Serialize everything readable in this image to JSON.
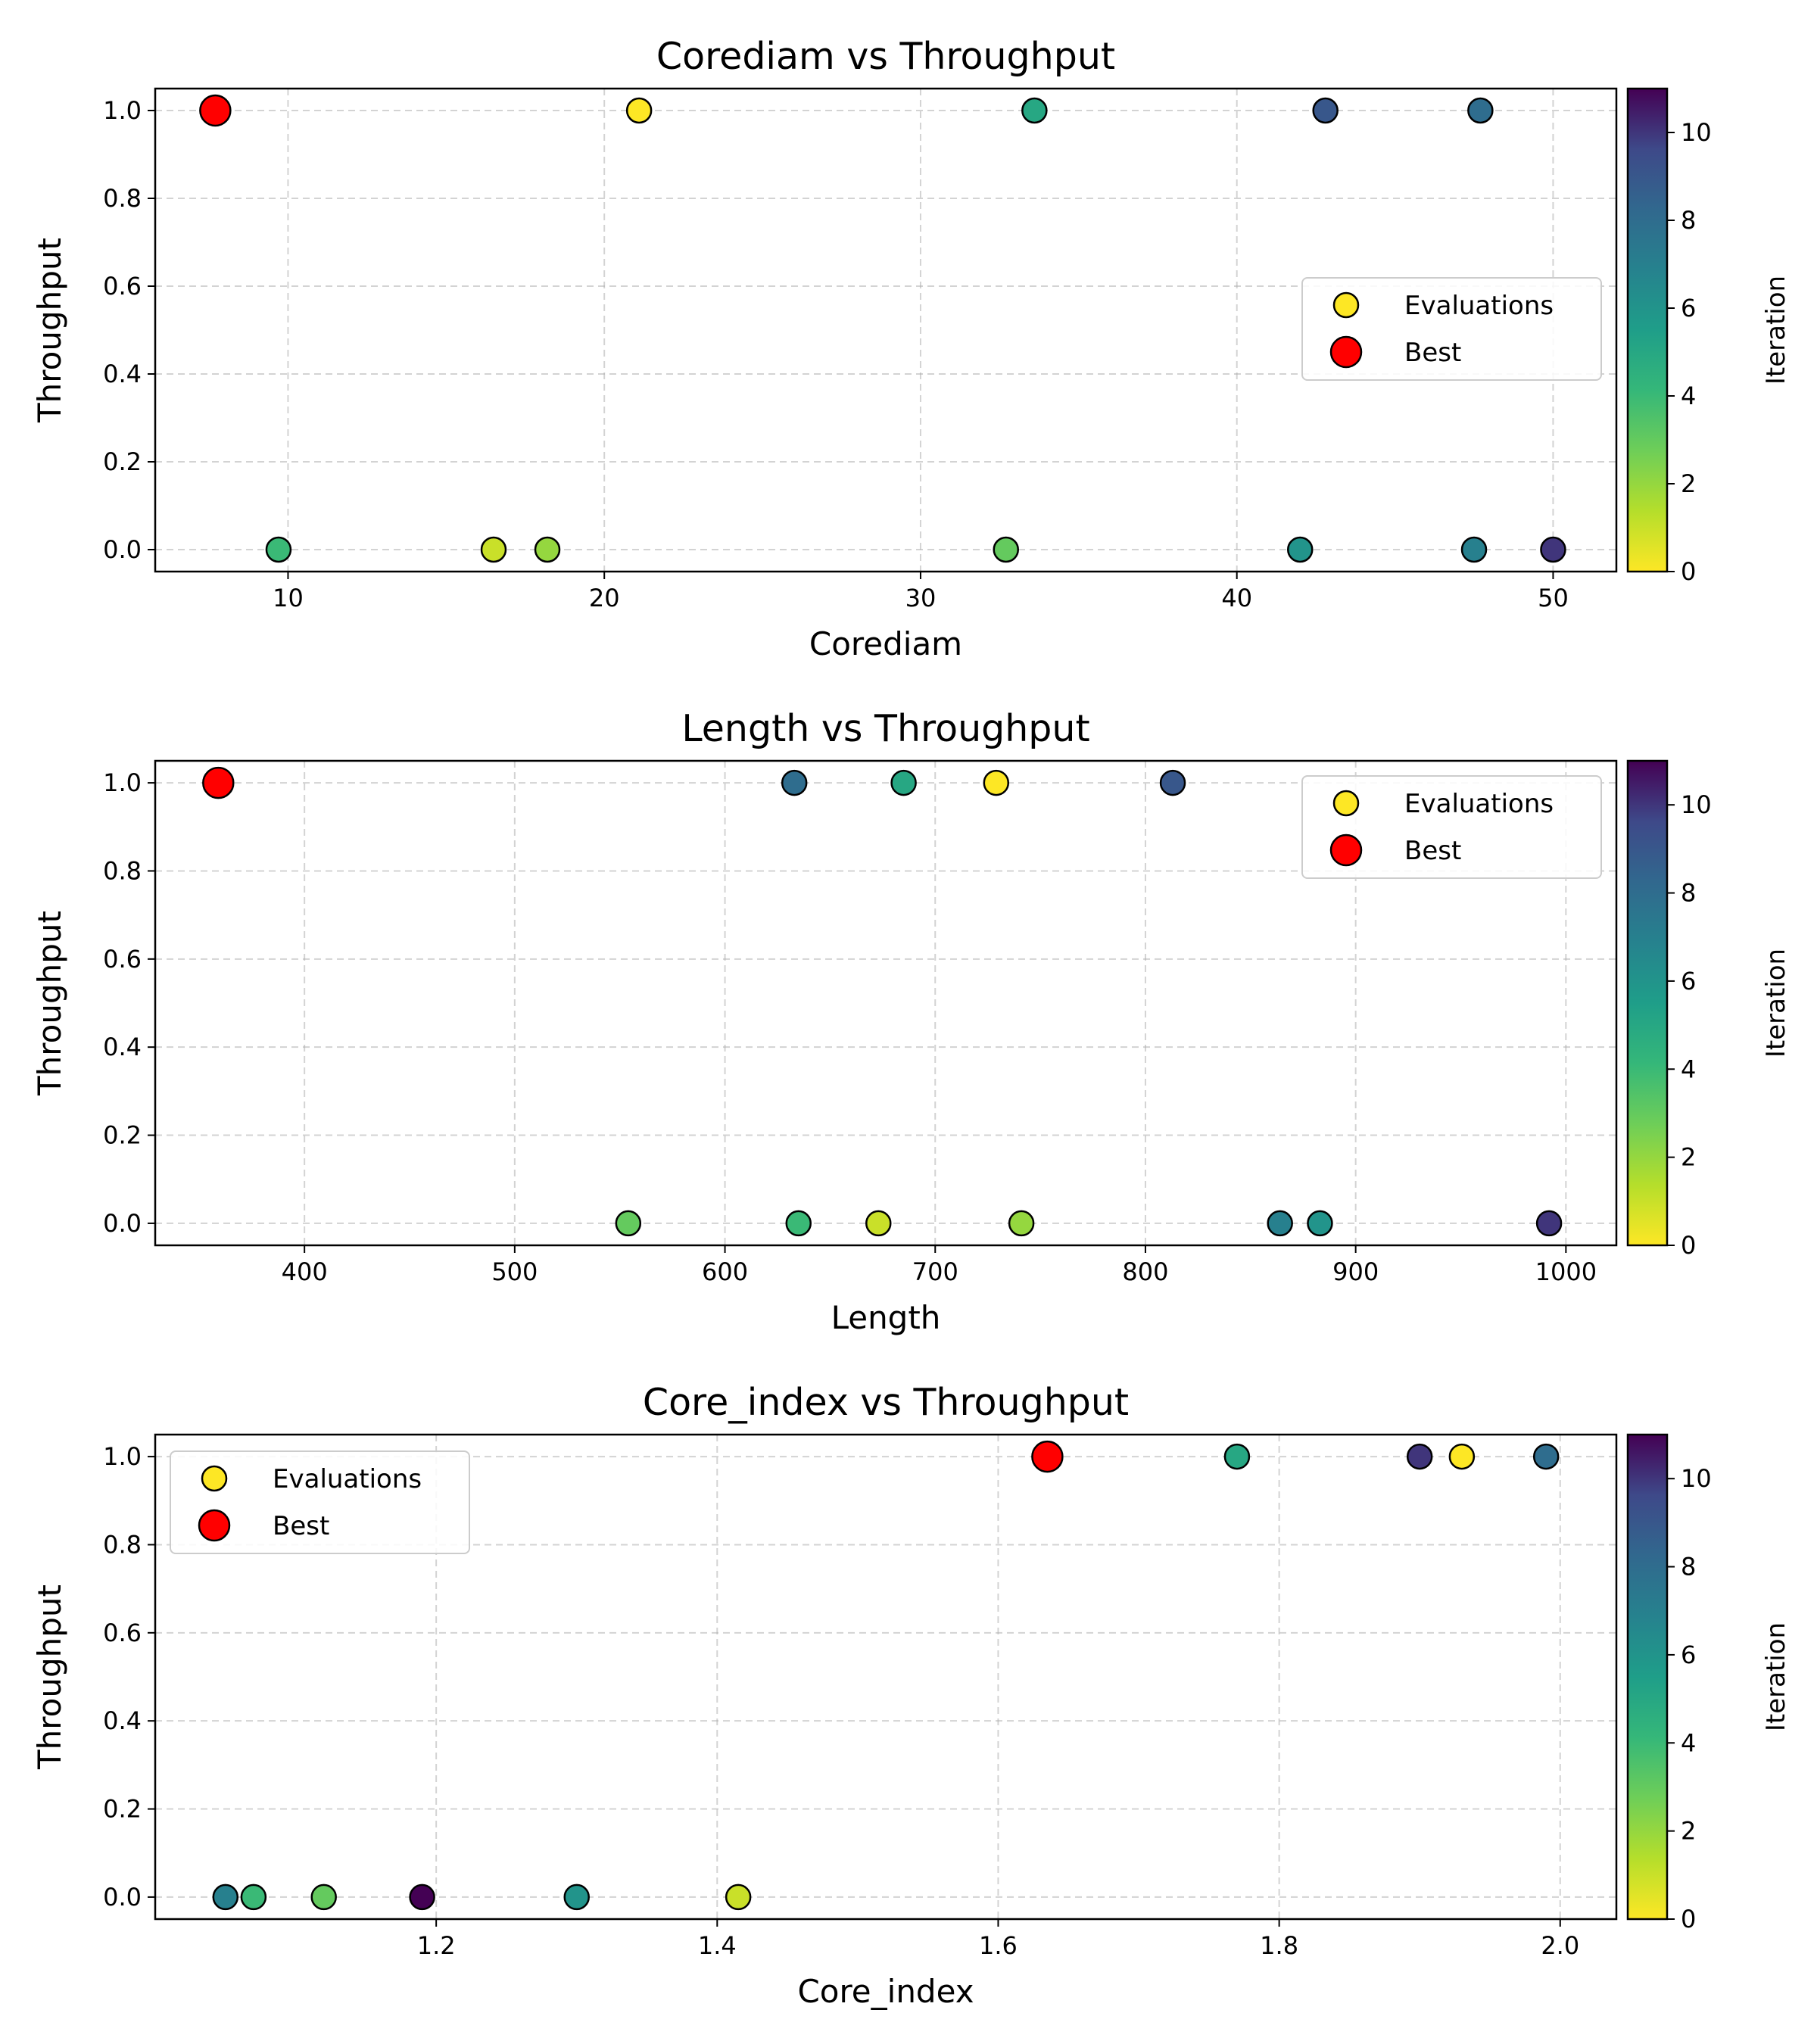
{
  "colors": {
    "best": "#ff0000",
    "colormap": "viridis_r"
  },
  "chart_data": [
    {
      "type": "scatter",
      "title": "Corediam vs Throughput",
      "xlabel": "Corediam",
      "ylabel": "Throughput",
      "xlim": [
        5.8,
        52.0
      ],
      "ylim": [
        -0.05,
        1.05
      ],
      "xticks": [
        10,
        20,
        30,
        40,
        50
      ],
      "xtick_labels": [
        "10",
        "20",
        "30",
        "40",
        "50"
      ],
      "yticks": [
        0.0,
        0.2,
        0.4,
        0.6,
        0.8,
        1.0
      ],
      "ytick_labels": [
        "0.0",
        "0.2",
        "0.4",
        "0.6",
        "0.8",
        "1.0"
      ],
      "grid": true,
      "legend": {
        "position": "center-right",
        "entries": [
          "Evaluations",
          "Best"
        ]
      },
      "colorbar": {
        "label": "Iteration",
        "min": 0,
        "max": 11,
        "ticks": [
          0,
          2,
          4,
          6,
          8,
          10
        ],
        "tick_labels": [
          "0",
          "2",
          "4",
          "6",
          "8",
          "10"
        ]
      },
      "points": [
        {
          "x": 21.1,
          "y": 1.0,
          "iteration": 0
        },
        {
          "x": 16.5,
          "y": 0.0,
          "iteration": 1
        },
        {
          "x": 18.2,
          "y": 0.0,
          "iteration": 2
        },
        {
          "x": 32.7,
          "y": 0.0,
          "iteration": 3
        },
        {
          "x": 9.7,
          "y": 0.0,
          "iteration": 4
        },
        {
          "x": 33.6,
          "y": 1.0,
          "iteration": 5
        },
        {
          "x": 42.0,
          "y": 0.0,
          "iteration": 6
        },
        {
          "x": 47.5,
          "y": 0.0,
          "iteration": 7
        },
        {
          "x": 47.7,
          "y": 1.0,
          "iteration": 8
        },
        {
          "x": 42.8,
          "y": 1.0,
          "iteration": 9
        },
        {
          "x": 50.0,
          "y": 0.0,
          "iteration": 10
        }
      ],
      "best": {
        "x": 7.7,
        "y": 1.0
      }
    },
    {
      "type": "scatter",
      "title": "Length vs Throughput",
      "xlabel": "Length",
      "ylabel": "Throughput",
      "xlim": [
        329,
        1024
      ],
      "ylim": [
        -0.05,
        1.05
      ],
      "xticks": [
        400,
        500,
        600,
        700,
        800,
        900,
        1000
      ],
      "xtick_labels": [
        "400",
        "500",
        "600",
        "700",
        "800",
        "900",
        "1000"
      ],
      "yticks": [
        0.0,
        0.2,
        0.4,
        0.6,
        0.8,
        1.0
      ],
      "ytick_labels": [
        "0.0",
        "0.2",
        "0.4",
        "0.6",
        "0.8",
        "1.0"
      ],
      "grid": true,
      "legend": {
        "position": "top-right",
        "entries": [
          "Evaluations",
          "Best"
        ]
      },
      "colorbar": {
        "label": "Iteration",
        "min": 0,
        "max": 11,
        "ticks": [
          0,
          2,
          4,
          6,
          8,
          10
        ],
        "tick_labels": [
          "0",
          "2",
          "4",
          "6",
          "8",
          "10"
        ]
      },
      "points": [
        {
          "x": 729,
          "y": 1.0,
          "iteration": 0
        },
        {
          "x": 673,
          "y": 0.0,
          "iteration": 1
        },
        {
          "x": 741,
          "y": 0.0,
          "iteration": 2
        },
        {
          "x": 554,
          "y": 0.0,
          "iteration": 3
        },
        {
          "x": 635,
          "y": 0.0,
          "iteration": 4
        },
        {
          "x": 685,
          "y": 1.0,
          "iteration": 5
        },
        {
          "x": 883,
          "y": 0.0,
          "iteration": 6
        },
        {
          "x": 864,
          "y": 0.0,
          "iteration": 7
        },
        {
          "x": 633,
          "y": 1.0,
          "iteration": 8
        },
        {
          "x": 813,
          "y": 1.0,
          "iteration": 9
        },
        {
          "x": 992,
          "y": 0.0,
          "iteration": 10
        }
      ],
      "best": {
        "x": 359,
        "y": 1.0
      }
    },
    {
      "type": "scatter",
      "title": "Core_index vs Throughput",
      "xlabel": "Core_index",
      "ylabel": "Throughput",
      "xlim": [
        1.0,
        2.04
      ],
      "ylim": [
        -0.05,
        1.05
      ],
      "xticks": [
        1.2,
        1.4,
        1.6,
        1.8,
        2.0
      ],
      "xtick_labels": [
        "1.2",
        "1.4",
        "1.6",
        "1.8",
        "2.0"
      ],
      "yticks": [
        0.0,
        0.2,
        0.4,
        0.6,
        0.8,
        1.0
      ],
      "ytick_labels": [
        "0.0",
        "0.2",
        "0.4",
        "0.6",
        "0.8",
        "1.0"
      ],
      "grid": true,
      "legend": {
        "position": "top-left",
        "entries": [
          "Evaluations",
          "Best"
        ]
      },
      "colorbar": {
        "label": "Iteration",
        "min": 0,
        "max": 11,
        "ticks": [
          0,
          2,
          4,
          6,
          8,
          10
        ],
        "tick_labels": [
          "0",
          "2",
          "4",
          "6",
          "8",
          "10"
        ]
      },
      "points": [
        {
          "x": 1.93,
          "y": 1.0,
          "iteration": 0
        },
        {
          "x": 1.415,
          "y": 0.0,
          "iteration": 1
        },
        {
          "x": 1.12,
          "y": 0.0,
          "iteration": 3
        },
        {
          "x": 1.07,
          "y": 0.0,
          "iteration": 4
        },
        {
          "x": 1.77,
          "y": 1.0,
          "iteration": 5
        },
        {
          "x": 1.3,
          "y": 0.0,
          "iteration": 6
        },
        {
          "x": 1.05,
          "y": 0.0,
          "iteration": 7
        },
        {
          "x": 1.99,
          "y": 1.0,
          "iteration": 8
        },
        {
          "x": 1.9,
          "y": 1.0,
          "iteration": 10
        },
        {
          "x": 1.19,
          "y": 0.0,
          "iteration": 11
        }
      ],
      "best": {
        "x": 1.635,
        "y": 1.0
      }
    }
  ]
}
